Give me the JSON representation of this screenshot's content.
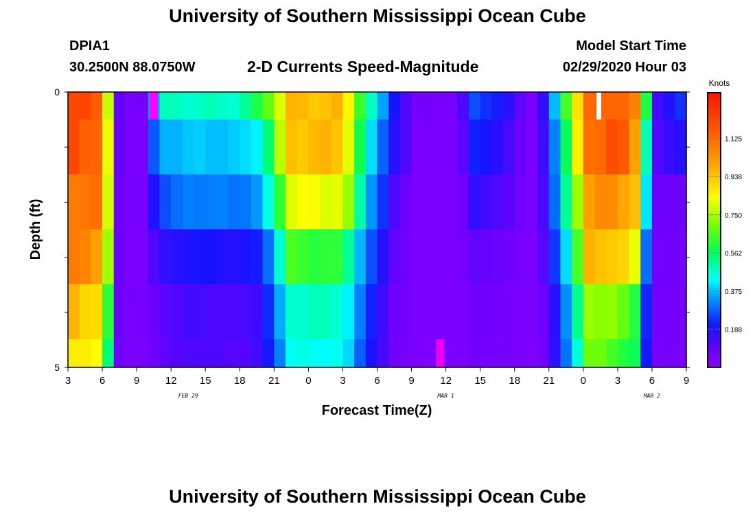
{
  "page": {
    "title": "University of Southern Mississippi Ocean Cube",
    "footer_title": "University of Southern Mississippi Ocean Cube"
  },
  "header": {
    "station": "DPIA1",
    "location": "30.2500N 88.0750W",
    "chart_title": "2-D Currents Speed-Magnitude",
    "model_start_label": "Model Start Time",
    "model_start_value": "02/29/2020 Hour 03"
  },
  "chart_data": {
    "type": "heatmap",
    "title": "2-D Currents Speed-Magnitude",
    "xlabel": "Forecast Time(Z)",
    "ylabel": "Depth (ft)",
    "x_tick_labels": [
      "3",
      "6",
      "9",
      "12",
      "15",
      "18",
      "21",
      "0",
      "3",
      "6",
      "9",
      "12",
      "15",
      "18",
      "21",
      "0",
      "3",
      "6",
      "9"
    ],
    "date_labels": [
      {
        "label": "FEB 29",
        "hour_index": 10.5
      },
      {
        "label": "MAR 1",
        "hour_index": 33
      },
      {
        "label": "MAR 2",
        "hour_index": 51
      }
    ],
    "y_ticks": [
      "0",
      "5"
    ],
    "ylim": [
      0,
      5
    ],
    "colorbar": {
      "unit": "Knots",
      "ticks": [
        "1.125",
        "0.938",
        "0.750",
        "0.562",
        "0.375",
        "0.188"
      ],
      "vmin": 0.0,
      "vmax": 1.35
    },
    "n_hours": 54,
    "n_depth_layers": 5,
    "anchors": [
      {
        "h": 0,
        "v": [
          1.22,
          1.2,
          1.12,
          1.08,
          0.98
        ]
      },
      {
        "h": 3,
        "v": [
          1.15,
          1.14,
          1.08,
          1.02,
          0.88
        ]
      },
      {
        "h": 3.5,
        "v": [
          0.8,
          0.8,
          0.8,
          0.75,
          0.6
        ]
      },
      {
        "h": 4,
        "v": [
          0.3,
          0.28,
          0.25,
          0.25,
          0.25
        ]
      },
      {
        "h": 4.6,
        "v": [
          0.05,
          0.05,
          0.05,
          0.05,
          0.05
        ]
      },
      {
        "h": 6.8,
        "v": [
          0.05,
          0.05,
          0.05,
          0.05,
          0.05
        ]
      },
      {
        "h": 7.8,
        "v": [
          0.48,
          0.36,
          0.25,
          0.15,
          0.1
        ]
      },
      {
        "h": 11,
        "v": [
          0.48,
          0.38,
          0.32,
          0.2,
          0.14
        ]
      },
      {
        "h": 15,
        "v": [
          0.48,
          0.38,
          0.3,
          0.18,
          0.12
        ]
      },
      {
        "h": 17,
        "v": [
          0.62,
          0.45,
          0.35,
          0.22,
          0.16
        ]
      },
      {
        "h": 19.5,
        "v": [
          0.95,
          0.95,
          0.82,
          0.64,
          0.48
        ]
      },
      {
        "h": 24,
        "v": [
          0.95,
          0.95,
          0.82,
          0.6,
          0.48
        ]
      },
      {
        "h": 26,
        "v": [
          0.55,
          0.45,
          0.4,
          0.3,
          0.25
        ]
      },
      {
        "h": 28.5,
        "v": [
          0.2,
          0.18,
          0.12,
          0.1,
          0.08
        ]
      },
      {
        "h": 30.5,
        "v": [
          0.05,
          0.05,
          0.04,
          0.04,
          0.04
        ]
      },
      {
        "h": 34,
        "v": [
          0.05,
          0.05,
          0.04,
          0.04,
          0.04
        ]
      },
      {
        "h": 35.5,
        "v": [
          0.26,
          0.22,
          0.16,
          0.1,
          0.07
        ]
      },
      {
        "h": 38,
        "v": [
          0.2,
          0.16,
          0.12,
          0.08,
          0.06
        ]
      },
      {
        "h": 40.5,
        "v": [
          0.04,
          0.04,
          0.04,
          0.04,
          0.04
        ]
      },
      {
        "h": 42,
        "v": [
          0.22,
          0.2,
          0.18,
          0.15,
          0.1
        ]
      },
      {
        "h": 44,
        "v": [
          0.8,
          0.7,
          0.62,
          0.5,
          0.4
        ]
      },
      {
        "h": 45.5,
        "v": [
          1.1,
          1.12,
          1.02,
          0.95,
          0.75
        ]
      },
      {
        "h": 48,
        "v": [
          1.18,
          1.2,
          1.05,
          0.95,
          0.7
        ]
      },
      {
        "h": 49.5,
        "v": [
          1.05,
          1.02,
          0.95,
          0.8,
          0.62
        ]
      },
      {
        "h": 50.5,
        "v": [
          0.6,
          0.5,
          0.4,
          0.3,
          0.22
        ]
      },
      {
        "h": 51.5,
        "v": [
          0.14,
          0.12,
          0.08,
          0.07,
          0.06
        ]
      },
      {
        "h": 54,
        "v": [
          0.25,
          0.2,
          0.08,
          0.06,
          0.06
        ]
      }
    ],
    "highlights": [
      {
        "hour": 7,
        "layer": 0,
        "color": "#ff00ff"
      },
      {
        "hour": 32,
        "layer": 4,
        "color": "#ee00ee"
      },
      {
        "hour": 46,
        "layer": 0,
        "color": "#ffffff"
      }
    ]
  }
}
